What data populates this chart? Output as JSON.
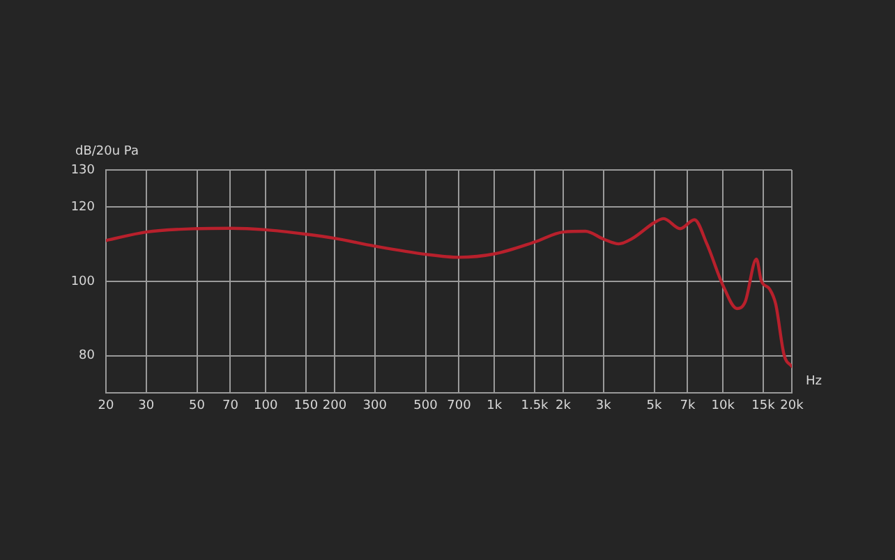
{
  "chart_data": {
    "type": "line",
    "xlabel": "Hz",
    "ylabel": "dB/20u Pa",
    "log": "x",
    "grid": true,
    "legend": false,
    "marker": "none",
    "line_style": "solid",
    "xlim": [
      20,
      20000
    ],
    "ylim": [
      70,
      130
    ],
    "xticks": [
      20,
      30,
      50,
      70,
      100,
      150,
      200,
      300,
      500,
      700,
      {
        "value": 1000,
        "label": "1k"
      },
      {
        "value": 1500,
        "label": "1.5k"
      },
      {
        "value": 2000,
        "label": "2k"
      },
      {
        "value": 3000,
        "label": "3k"
      },
      {
        "value": 5000,
        "label": "5k"
      },
      {
        "value": 7000,
        "label": "7k"
      },
      {
        "value": 10000,
        "label": "10k"
      },
      {
        "value": 15000,
        "label": "15k"
      },
      {
        "value": 20000,
        "label": "20k"
      }
    ],
    "yticks": [
      80,
      100,
      120,
      130
    ],
    "series": [
      {
        "color": "#b8202c",
        "x": [
          20,
          30,
          50,
          70,
          100,
          150,
          200,
          300,
          500,
          700,
          1000,
          1500,
          2000,
          2500,
          3000,
          3500,
          4000,
          5000,
          5500,
          6500,
          7500,
          8500,
          10000,
          11500,
          12500,
          14000,
          14700,
          16000,
          17000,
          18500,
          20000
        ],
        "values": [
          111,
          113.3,
          114.2,
          114.3,
          113.9,
          112.7,
          111.6,
          109.5,
          107.3,
          106.5,
          107.4,
          110.6,
          113.3,
          113.5,
          111.4,
          110.1,
          111.5,
          115.8,
          116.9,
          114.2,
          116.6,
          110.1,
          98.9,
          92.7,
          94.5,
          106,
          100.2,
          97.9,
          93.9,
          80.2,
          77.1
        ]
      }
    ]
  }
}
